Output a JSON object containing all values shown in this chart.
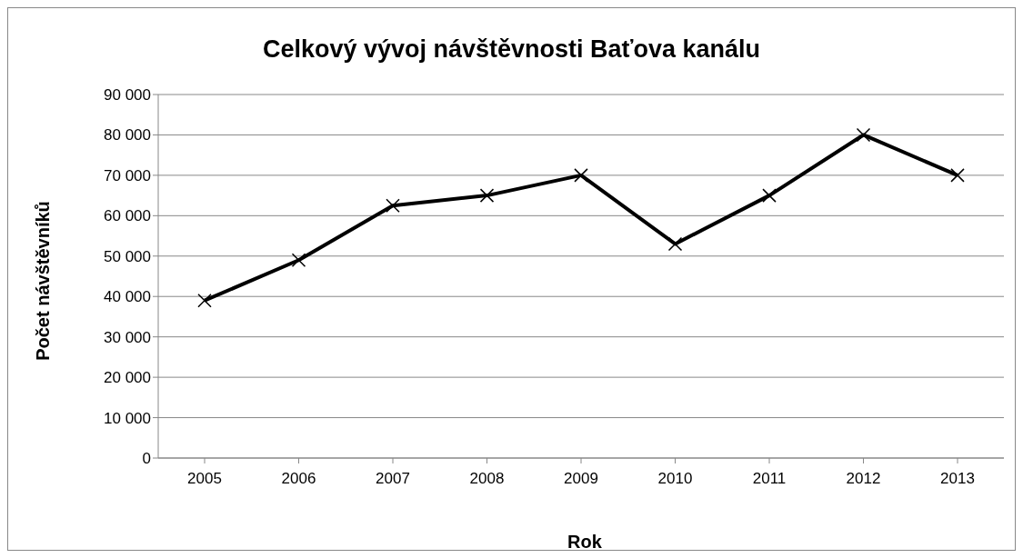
{
  "chart_data": {
    "type": "line",
    "title": "Celkový vývoj návštěvnosti Baťova kanálu",
    "xlabel": "Rok",
    "ylabel": "Počet návštěvníků",
    "categories": [
      "2005",
      "2006",
      "2007",
      "2008",
      "2009",
      "2010",
      "2011",
      "2012",
      "2013"
    ],
    "series": [
      {
        "color": "#000000",
        "values": [
          39000,
          49000,
          62500,
          65000,
          70000,
          53000,
          65000,
          80000,
          70000
        ]
      }
    ],
    "ylim": [
      0,
      90000
    ],
    "yticks": [
      {
        "value": 0,
        "label": "0"
      },
      {
        "value": 10000,
        "label": "10 000"
      },
      {
        "value": 20000,
        "label": "20 000"
      },
      {
        "value": 30000,
        "label": "30 000"
      },
      {
        "value": 40000,
        "label": "40 000"
      },
      {
        "value": 50000,
        "label": "50 000"
      },
      {
        "value": 60000,
        "label": "60 000"
      },
      {
        "value": 70000,
        "label": "70 000"
      },
      {
        "value": 80000,
        "label": "80 000"
      },
      {
        "value": 90000,
        "label": "90 000"
      }
    ],
    "grid": "y",
    "legend": false,
    "marker": "cross",
    "line_style": "solid"
  }
}
